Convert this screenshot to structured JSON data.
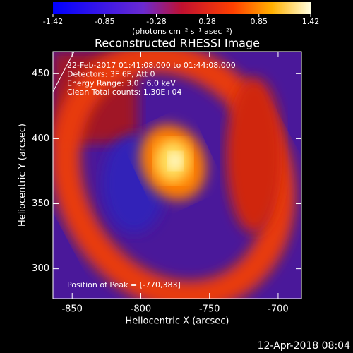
{
  "chart_data": {
    "type": "image",
    "title": "Reconstructed RHESSI Image",
    "xlabel": "Heliocentric X (arcsec)",
    "ylabel": "Heliocentric Y (arcsec)",
    "xlim": [
      -864,
      -683
    ],
    "ylim": [
      277,
      467
    ],
    "xticks": [
      -850,
      -800,
      -750,
      -700
    ],
    "yticks": [
      300,
      350,
      400,
      450
    ],
    "colorbar": {
      "lim": [
        -1.42,
        1.42
      ],
      "ticks": [
        -1.42,
        -0.85,
        -0.28,
        0.28,
        0.85,
        1.42
      ],
      "label": "(photons cm⁻² s⁻¹ asec⁻²)"
    },
    "annotations": [
      "22-Feb-2017 01:41:08.000 to 01:44:08.000",
      "Detectors: 3F 6F, Att 0",
      "Energy Range: 3.0 - 6.0 keV",
      "Clean     Total counts: 1.30E+04"
    ],
    "peak_label": "Position of Peak = [-770,383]",
    "footer": "12-Apr-2018 08:04"
  }
}
